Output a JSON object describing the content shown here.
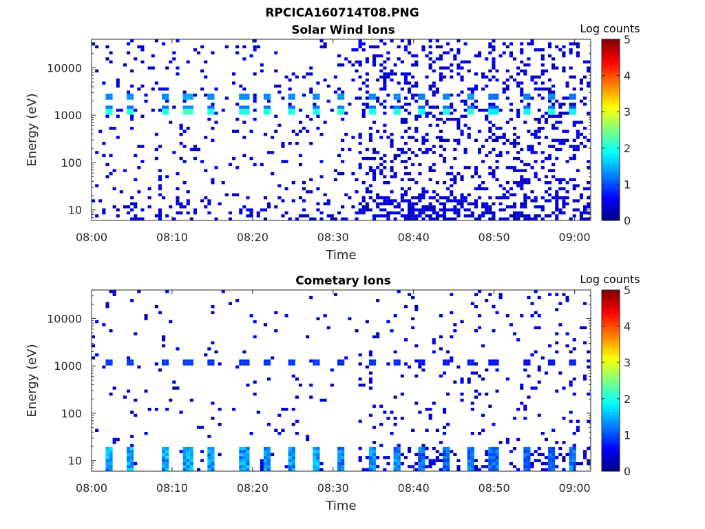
{
  "figure": {
    "title": "RPCICA160714T08.PNG"
  },
  "chart_data": [
    {
      "type": "heatmap",
      "title": "Solar Wind Ions",
      "xlabel": "Time",
      "ylabel": "Energy (eV)",
      "x_ticks": [
        "08:00",
        "08:10",
        "08:20",
        "08:30",
        "08:40",
        "08:50",
        "09:00"
      ],
      "x_range": [
        "08:00",
        "09:02"
      ],
      "y_scale": "log",
      "y_ticks": [
        10,
        100,
        1000,
        10000
      ],
      "y_range": [
        6,
        40000
      ],
      "colorbar": {
        "label": "Log counts",
        "ticks": [
          0,
          1,
          2,
          3,
          4,
          5
        ],
        "range": [
          0,
          5
        ],
        "colormap": "jet"
      },
      "peak_energy_eV": 1200,
      "secondary_energy_eV": 2500,
      "pulse_times": [
        "08:02",
        "08:05",
        "08:09",
        "08:12",
        "08:15",
        "08:19",
        "08:22",
        "08:25",
        "08:28",
        "08:31",
        "08:35",
        "08:38",
        "08:41",
        "08:44",
        "08:47",
        "08:50",
        "08:54",
        "08:57",
        "09:00"
      ],
      "peak_log_counts": [
        2.0,
        2.0,
        2.0,
        2.2,
        2.0,
        2.0,
        2.0,
        2.0,
        2.0,
        2.1,
        2.0,
        2.0,
        1.9,
        2.0,
        2.1,
        1.8,
        1.9,
        2.0,
        1.8
      ],
      "background": "sparse counts (log ~0–0.5) across all energies, denser after 08:33"
    },
    {
      "type": "heatmap",
      "title": "Cometary Ions",
      "xlabel": "Time",
      "ylabel": "Energy (eV)",
      "x_ticks": [
        "08:00",
        "08:10",
        "08:20",
        "08:30",
        "08:40",
        "08:50",
        "09:00"
      ],
      "x_range": [
        "08:00",
        "09:02"
      ],
      "y_scale": "log",
      "y_ticks": [
        10,
        100,
        1000,
        10000
      ],
      "y_range": [
        6,
        40000
      ],
      "colorbar": {
        "label": "Log counts",
        "ticks": [
          0,
          1,
          2,
          3,
          4,
          5
        ],
        "range": [
          0,
          5
        ],
        "colormap": "jet"
      },
      "low_energy_band_eV": [
        6,
        20
      ],
      "pulse_times": [
        "08:02",
        "08:05",
        "08:09",
        "08:12",
        "08:15",
        "08:19",
        "08:22",
        "08:25",
        "08:28",
        "08:31",
        "08:35",
        "08:38",
        "08:41",
        "08:44",
        "08:47",
        "08:50",
        "08:54",
        "08:57",
        "09:00"
      ],
      "peak_log_counts": [
        1.8,
        1.8,
        1.8,
        1.8,
        1.7,
        1.7,
        1.7,
        1.7,
        1.8,
        1.6,
        1.7,
        1.6,
        1.4,
        1.4,
        1.5,
        1.4,
        1.3,
        1.4,
        1.5
      ],
      "secondary_energy_eV": 1200,
      "background": "sparse counts (log ~0–0.5); dense low-energy blocks after 08:40"
    }
  ]
}
